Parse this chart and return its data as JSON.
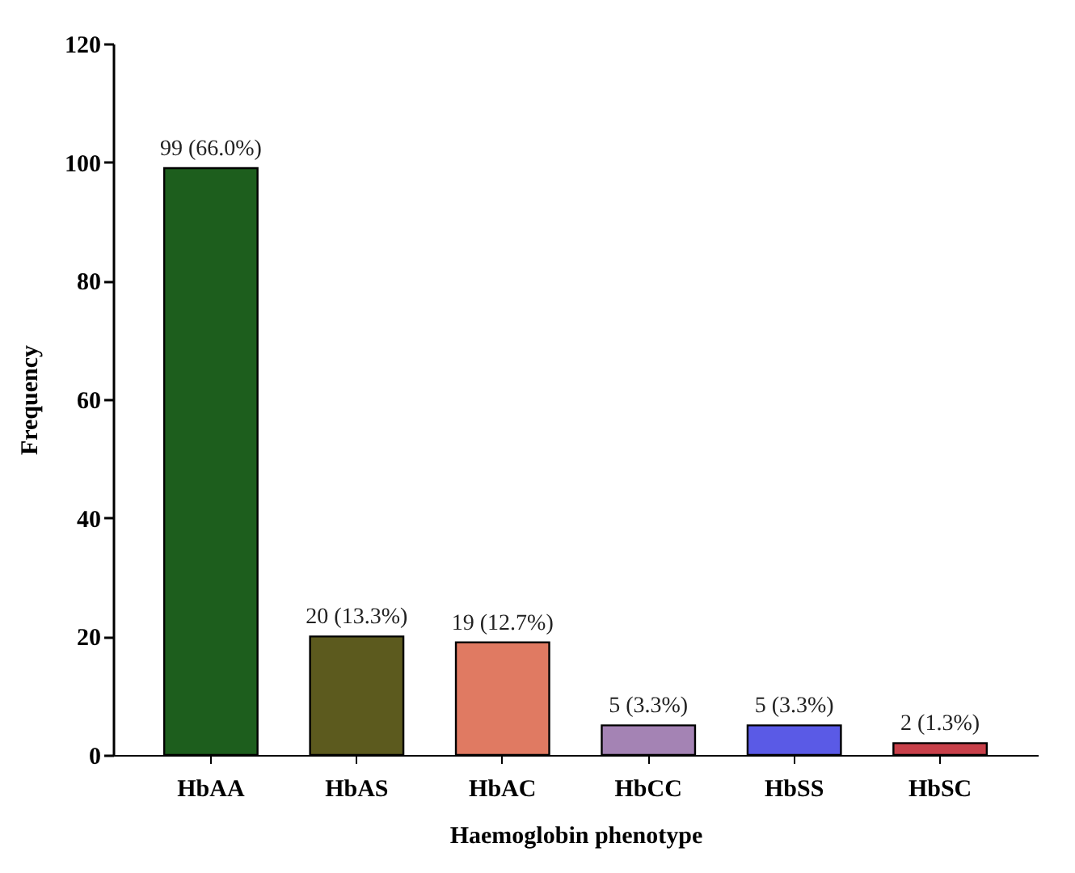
{
  "chart_data": {
    "type": "bar",
    "xlabel": "Haemoglobin phenotype",
    "ylabel": "Frequency",
    "categories": [
      "HbAA",
      "HbAS",
      "HbAC",
      "HbCC",
      "HbSS",
      "HbSC"
    ],
    "values": [
      99,
      20,
      19,
      5,
      5,
      2
    ],
    "colors": [
      "#1d5e1d",
      "#5c5a1e",
      "#e07a62",
      "#a483b4",
      "#5a5ae6",
      "#c8404a"
    ],
    "value_labels": [
      "99 (66.0%)",
      "20 (13.3%)",
      "19 (12.7%)",
      "5 (3.3%)",
      "5 (3.3%)",
      "2 (1.3%)"
    ],
    "ylim": [
      0,
      120
    ],
    "yticks": [
      0,
      20,
      40,
      60,
      80,
      100,
      120
    ],
    "grid": false
  }
}
